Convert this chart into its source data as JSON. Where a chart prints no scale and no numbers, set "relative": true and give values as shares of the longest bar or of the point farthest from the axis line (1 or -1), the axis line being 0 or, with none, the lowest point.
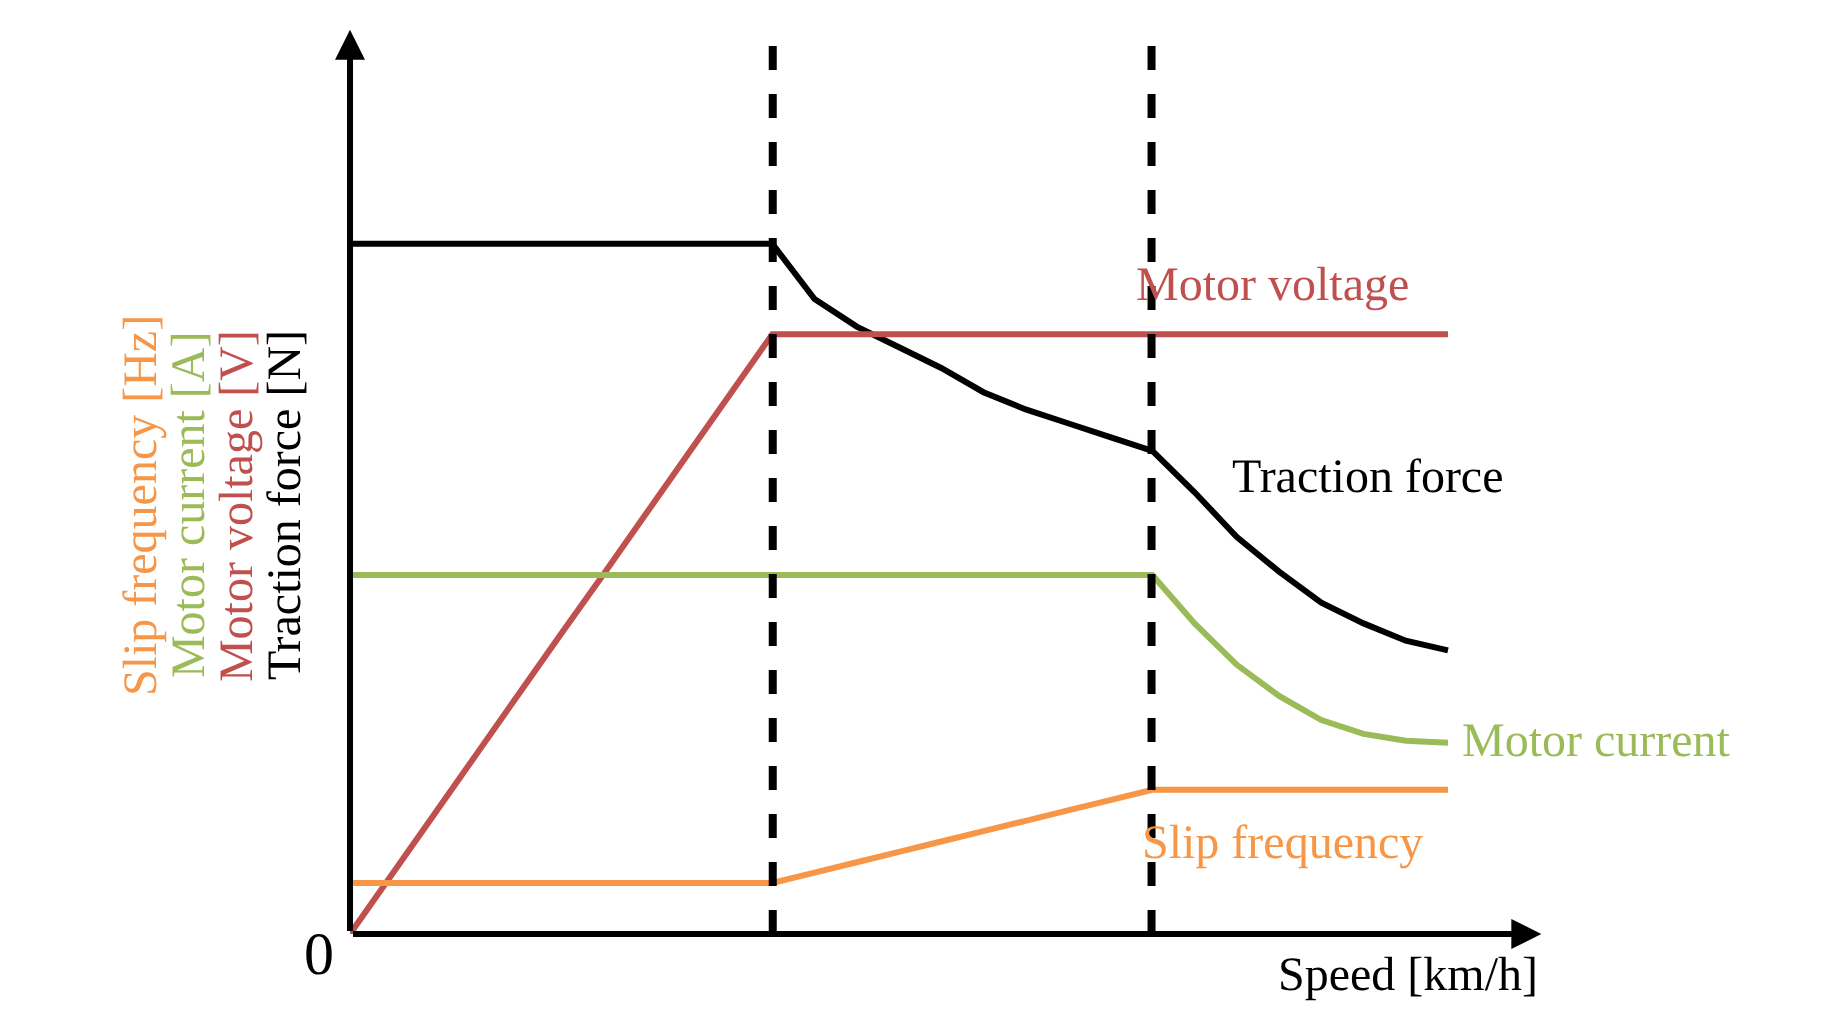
{
  "chart_data": {
    "type": "line",
    "relative": true,
    "xlabel": "Speed [km/h]",
    "ylabel": [
      "Traction force [N]",
      "Motor voltage [V]",
      "Motor current [A]",
      "Slip frequency [Hz]"
    ],
    "annotations": [
      "0"
    ],
    "categories": [
      null,
      null,
      null,
      null,
      null,
      null,
      null,
      null,
      null,
      null,
      null,
      null,
      null,
      null,
      null,
      null,
      null,
      null,
      null,
      null,
      null,
      null,
      null,
      null,
      null,
      null,
      null
    ],
    "series": [
      {
        "name": "Traction force",
        "color": "#000000",
        "values": [
          1.0,
          1.0,
          1.0,
          1.0,
          1.0,
          1.0,
          1.0,
          1.0,
          1.0,
          1.0,
          1.0,
          0.92,
          0.88,
          0.85,
          0.82,
          0.785,
          0.76,
          0.74,
          0.72,
          0.7,
          0.64,
          0.575,
          0.525,
          0.48,
          0.45,
          0.425,
          0.411
        ]
      },
      {
        "name": "Motor voltage",
        "color": "#c0504d",
        "values": [
          0,
          0.087,
          0.174,
          0.261,
          0.348,
          0.435,
          0.521,
          0.608,
          0.695,
          0.782,
          0.869,
          0.869,
          0.869,
          0.869,
          0.869,
          0.869,
          0.869,
          0.869,
          0.869,
          0.869,
          0.869,
          0.869,
          0.869,
          0.869,
          0.869,
          0.869,
          0.869
        ]
      },
      {
        "name": "Motor current",
        "color": "#9bbb59",
        "values": [
          0.52,
          0.52,
          0.52,
          0.52,
          0.52,
          0.52,
          0.52,
          0.52,
          0.52,
          0.52,
          0.52,
          0.52,
          0.52,
          0.52,
          0.52,
          0.52,
          0.52,
          0.52,
          0.52,
          0.52,
          0.45,
          0.39,
          0.345,
          0.31,
          0.29,
          0.28,
          0.277
        ]
      },
      {
        "name": "Slip frequency",
        "color": "#f79646",
        "values": [
          0.074,
          0.074,
          0.074,
          0.074,
          0.074,
          0.074,
          0.074,
          0.074,
          0.074,
          0.074,
          0.074,
          0.089,
          0.104,
          0.119,
          0.134,
          0.149,
          0.164,
          0.179,
          0.194,
          0.209,
          0.209,
          0.209,
          0.209,
          0.209,
          0.209,
          0.209,
          0.209
        ]
      }
    ],
    "legend": false,
    "marker": "none",
    "line_style": "solid"
  }
}
